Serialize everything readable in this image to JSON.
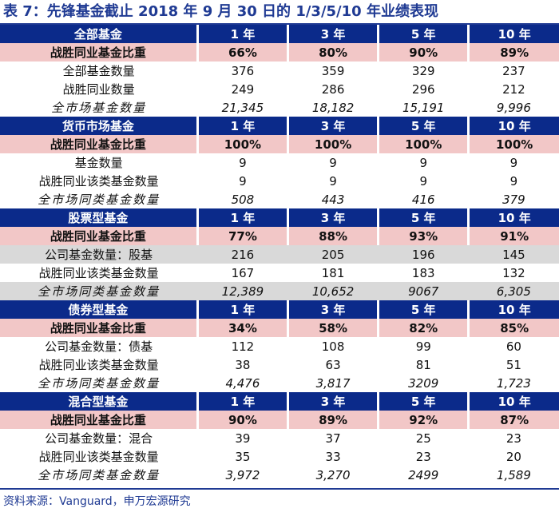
{
  "title": "表 7：先锋基金截止 2018 年 9 月 30 日的 1/3/5/10 年业绩表现",
  "periods": [
    "1 年",
    "3 年",
    "5 年",
    "10 年"
  ],
  "sections": [
    {
      "name": "全部基金",
      "rows": [
        {
          "label": "战胜同业基金比重",
          "values": [
            "66%",
            "80%",
            "90%",
            "89%"
          ],
          "style": "win"
        },
        {
          "label": "全部基金数量",
          "values": [
            "376",
            "359",
            "329",
            "237"
          ],
          "style": "plain"
        },
        {
          "label": "战胜同业数量",
          "values": [
            "249",
            "286",
            "296",
            "212"
          ],
          "style": "plain"
        },
        {
          "label": "全市场基金数量",
          "values": [
            "21,345",
            "18,182",
            "15,191",
            "9,996"
          ],
          "style": "mkt"
        }
      ]
    },
    {
      "name": "货币市场基金",
      "rows": [
        {
          "label": "战胜同业基金比重",
          "values": [
            "100%",
            "100%",
            "100%",
            "100%"
          ],
          "style": "win"
        },
        {
          "label": "基金数量",
          "values": [
            "9",
            "9",
            "9",
            "9"
          ],
          "style": "plain"
        },
        {
          "label": "战胜同业该类基金数量",
          "values": [
            "9",
            "9",
            "9",
            "9"
          ],
          "style": "plain"
        },
        {
          "label": "全市场同类基金数量",
          "values": [
            "508",
            "443",
            "416",
            "379"
          ],
          "style": "mkt"
        }
      ]
    },
    {
      "name": "股票型基金",
      "rows": [
        {
          "label": "战胜同业基金比重",
          "values": [
            "77%",
            "88%",
            "93%",
            "91%"
          ],
          "style": "win"
        },
        {
          "label": "公司基金数量：股基",
          "values": [
            "216",
            "205",
            "196",
            "145"
          ],
          "style": "gray"
        },
        {
          "label": "战胜同业该类基金数量",
          "values": [
            "167",
            "181",
            "183",
            "132"
          ],
          "style": "plain"
        },
        {
          "label": "全市场同类基金数量",
          "values": [
            "12,389",
            "10,652",
            "9067",
            "6,305"
          ],
          "style": "mkt gray"
        }
      ]
    },
    {
      "name": "债券型基金",
      "rows": [
        {
          "label": "战胜同业基金比重",
          "values": [
            "34%",
            "58%",
            "82%",
            "85%"
          ],
          "style": "win"
        },
        {
          "label": "公司基金数量：债基",
          "values": [
            "112",
            "108",
            "99",
            "60"
          ],
          "style": "plain"
        },
        {
          "label": "战胜同业该类基金数量",
          "values": [
            "38",
            "63",
            "81",
            "51"
          ],
          "style": "plain"
        },
        {
          "label": "全市场同类基金数量",
          "values": [
            "4,476",
            "3,817",
            "3209",
            "1,723"
          ],
          "style": "mkt"
        }
      ]
    },
    {
      "name": "混合型基金",
      "rows": [
        {
          "label": "战胜同业基金比重",
          "values": [
            "90%",
            "89%",
            "92%",
            "87%"
          ],
          "style": "win"
        },
        {
          "label": "公司基金数量：混合",
          "values": [
            "39",
            "37",
            "25",
            "23"
          ],
          "style": "plain"
        },
        {
          "label": "战胜同业该类基金数量",
          "values": [
            "35",
            "33",
            "23",
            "20"
          ],
          "style": "plain"
        },
        {
          "label": "全市场同类基金数量",
          "values": [
            "3,972",
            "3,270",
            "2499",
            "1,589"
          ],
          "style": "mkt"
        }
      ]
    }
  ],
  "footer": "资料来源：Vanguard，申万宏源研究"
}
